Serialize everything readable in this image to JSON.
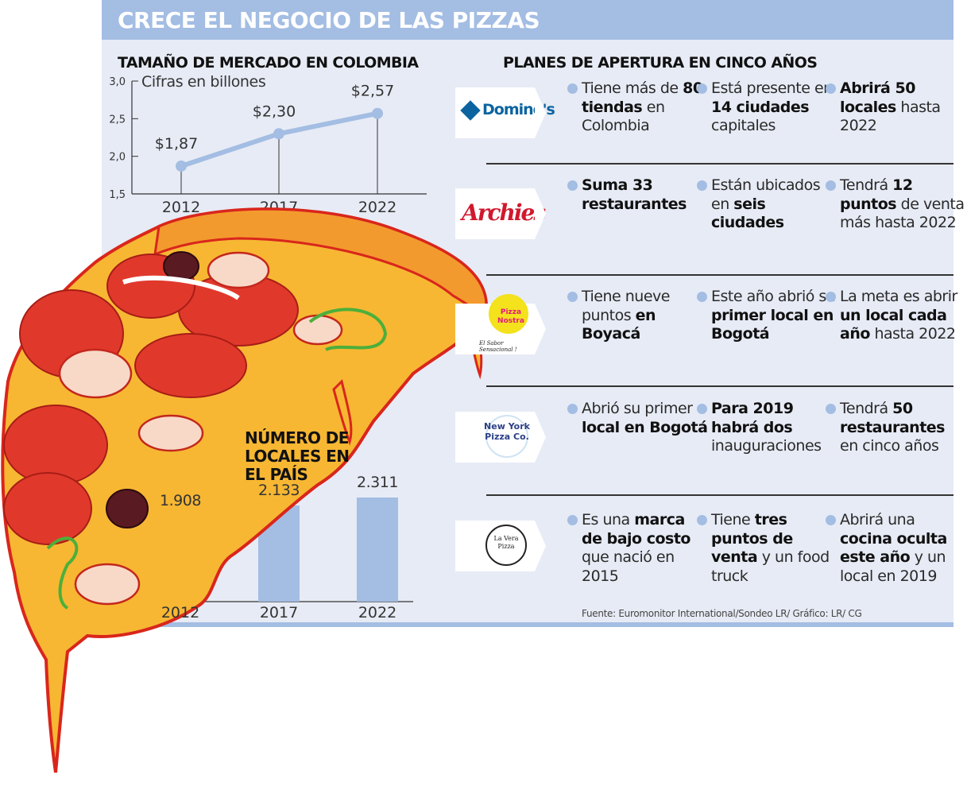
{
  "title": "CRECE EL NEGOCIO DE LAS PIZZAS",
  "colors": {
    "accent": "#a3bde3",
    "panel": "#e7ebf5",
    "text": "#111111"
  },
  "chart_data": [
    {
      "type": "line",
      "title": "TAMAÑO DE MERCADO EN COLOMBIA",
      "subtitle": "Cifras en billones",
      "categories": [
        "2012",
        "2017",
        "2022"
      ],
      "values": [
        1.87,
        2.3,
        2.57
      ],
      "data_labels": [
        "$1,87",
        "$2,30",
        "$2,57"
      ],
      "ylim": [
        1.5,
        3.0
      ],
      "yticks": [
        "1,5",
        "2,0",
        "2,5",
        "3,0"
      ],
      "ytick_values": [
        1.5,
        2.0,
        2.5,
        3.0
      ],
      "grid": false
    },
    {
      "type": "bar",
      "title": "NÚMERO DE LOCALES EN EL PAÍS",
      "categories": [
        "2012",
        "2017",
        "2022"
      ],
      "values": [
        1908,
        2133,
        2311
      ],
      "data_labels": [
        "1.908",
        "2.133",
        "2.311"
      ],
      "ylim": [
        0,
        2311
      ],
      "grid": false
    }
  ],
  "plans": {
    "title": "PLANES DE APERTURA EN CINCO AÑOS",
    "rows": [
      {
        "brand": "Domino's",
        "icon": "dominos-logo",
        "bullets": [
          [
            {
              "t": "Tiene más de "
            },
            {
              "t": "80 tiendas",
              "b": true
            },
            {
              "t": " en Colombia"
            }
          ],
          [
            {
              "t": "Está presente en "
            },
            {
              "t": "14 ciudades",
              "b": true
            },
            {
              "t": " capitales"
            }
          ],
          [
            {
              "t": "Abrirá 50 locales",
              "b": true
            },
            {
              "t": " hasta 2022"
            }
          ]
        ]
      },
      {
        "brand": "Archies",
        "icon": "archies-logo",
        "bullets": [
          [
            {
              "t": "Suma 33 restaurantes",
              "b": true
            }
          ],
          [
            {
              "t": "Están ubicados en "
            },
            {
              "t": "seis ciudades",
              "b": true
            }
          ],
          [
            {
              "t": "Tendrá "
            },
            {
              "t": "12 puntos",
              "b": true
            },
            {
              "t": " de venta más hasta 2022"
            }
          ]
        ]
      },
      {
        "brand": "Pizza Nostra",
        "tagline": "El Sabor Sensacional !",
        "icon": "pizza-nostra-logo",
        "bullets": [
          [
            {
              "t": "Tiene nueve puntos "
            },
            {
              "t": "en Boyacá",
              "b": true
            }
          ],
          [
            {
              "t": "Este año abrió su "
            },
            {
              "t": "primer local en Bogotá",
              "b": true
            }
          ],
          [
            {
              "t": "La meta es abrir "
            },
            {
              "t": "un local cada año",
              "b": true
            },
            {
              "t": " hasta 2022"
            }
          ]
        ]
      },
      {
        "brand": "New York Pizza Co.",
        "icon": "new-york-pizza-logo",
        "bullets": [
          [
            {
              "t": "Abrió su primer "
            },
            {
              "t": "local en Bogotá",
              "b": true
            }
          ],
          [
            {
              "t": "Para 2019 habrá dos",
              "b": true
            },
            {
              "t": " inauguraciones"
            }
          ],
          [
            {
              "t": "Tendrá "
            },
            {
              "t": "50 restaurantes",
              "b": true
            },
            {
              "t": " en cinco años"
            }
          ]
        ]
      },
      {
        "brand": "La Vera Pizza",
        "icon": "la-vera-pizza-logo",
        "bullets": [
          [
            {
              "t": "Es una "
            },
            {
              "t": "marca de bajo costo",
              "b": true
            },
            {
              "t": " que nació en 2015"
            }
          ],
          [
            {
              "t": "Tiene "
            },
            {
              "t": "tres puntos de venta",
              "b": true
            },
            {
              "t": " y un food truck"
            }
          ],
          [
            {
              "t": "Abrirá una "
            },
            {
              "t": "cocina oculta este año",
              "b": true
            },
            {
              "t": " y un local en 2019"
            }
          ]
        ]
      }
    ]
  },
  "source": "Fuente: Euromonitor International/Sondeo LR/ Gráfico: LR/ CG"
}
